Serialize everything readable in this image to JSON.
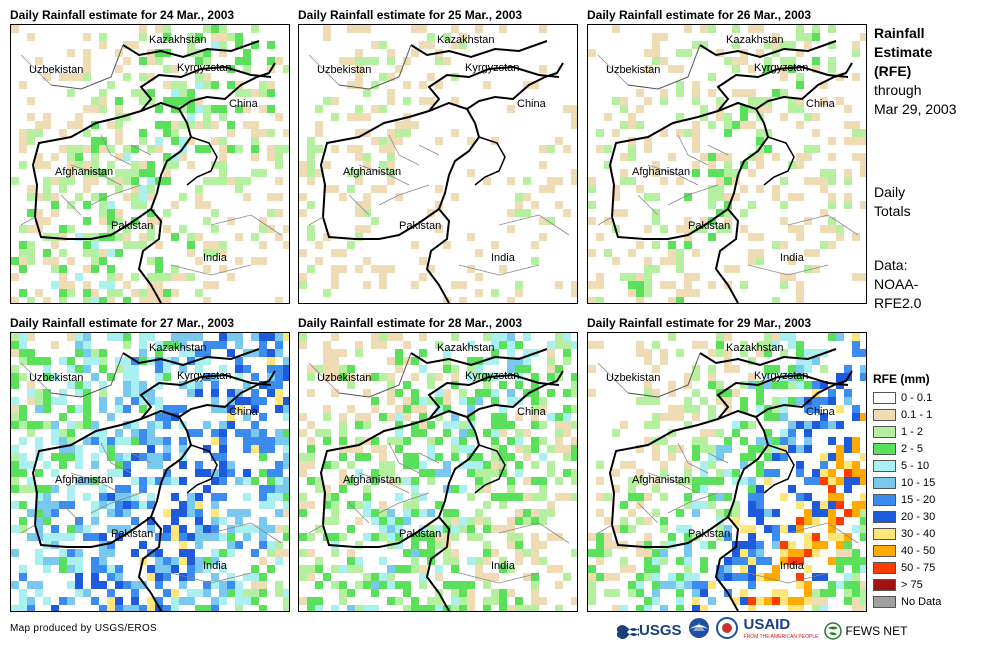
{
  "panels": [
    {
      "title": "Daily Rainfall estimate for 24 Mar., 2003",
      "pattern": [
        0,
        1,
        2,
        3,
        2,
        1,
        0
      ]
    },
    {
      "title": "Daily Rainfall estimate for 25 Mar., 2003",
      "pattern": [
        0,
        1,
        1,
        0,
        0,
        1,
        0
      ]
    },
    {
      "title": "Daily Rainfall estimate for 26 Mar., 2003",
      "pattern": [
        0,
        1,
        1,
        2,
        1,
        1,
        0
      ]
    },
    {
      "title": "Daily Rainfall estimate for 27 Mar., 2003",
      "pattern": [
        3,
        4,
        5,
        6,
        7,
        5,
        3
      ]
    },
    {
      "title": "Daily Rainfall estimate for 28 Mar., 2003",
      "pattern": [
        1,
        2,
        3,
        4,
        3,
        2,
        1
      ]
    },
    {
      "title": "Daily Rainfall estimate for 29 Mar., 2003",
      "pattern": [
        0,
        1,
        2,
        4,
        7,
        9,
        3
      ]
    }
  ],
  "map_labels": {
    "kazakhstan": "Kazakhstan",
    "uzbekistan": "Uzbekistan",
    "kyrgyzstan": "Kyrgyzstan",
    "china": "China",
    "afghanistan": "Afghanistan",
    "pakistan": "Pakistan",
    "india": "India"
  },
  "side": {
    "line1": "Rainfall",
    "line2": "Estimate",
    "line3": "(RFE)",
    "line4": "through",
    "line5": "Mar 29, 2003",
    "daily1": "Daily",
    "daily2": "Totals",
    "data1": "Data:",
    "data2": "NOAA-",
    "data3": "RFE2.0"
  },
  "legend": {
    "title": "RFE (mm)",
    "items": [
      {
        "label": "0 - 0.1",
        "color": "#ffffff"
      },
      {
        "label": "0.1 - 1",
        "color": "#f0dcb4"
      },
      {
        "label": "1 - 2",
        "color": "#b4f0a0"
      },
      {
        "label": "2 - 5",
        "color": "#5ae05a"
      },
      {
        "label": "5 - 10",
        "color": "#aaf0f0"
      },
      {
        "label": "10 - 15",
        "color": "#78c8f0"
      },
      {
        "label": "15 - 20",
        "color": "#3c8cf0"
      },
      {
        "label": "20 - 30",
        "color": "#1e5adc"
      },
      {
        "label": "30 - 40",
        "color": "#ffe678"
      },
      {
        "label": "40 - 50",
        "color": "#ffaa00"
      },
      {
        "label": "50 - 75",
        "color": "#ff3c00"
      },
      {
        "label": "> 75",
        "color": "#a01414"
      },
      {
        "label": "No Data",
        "color": "#a0a0a0"
      }
    ]
  },
  "credit": "Map produced by USGS/EROS",
  "logos": {
    "usgs": "USGS",
    "usaid": "USAID",
    "fewsnet": "FEWS NET",
    "usaid_tag": "FROM THE AMERICAN PEOPLE"
  }
}
